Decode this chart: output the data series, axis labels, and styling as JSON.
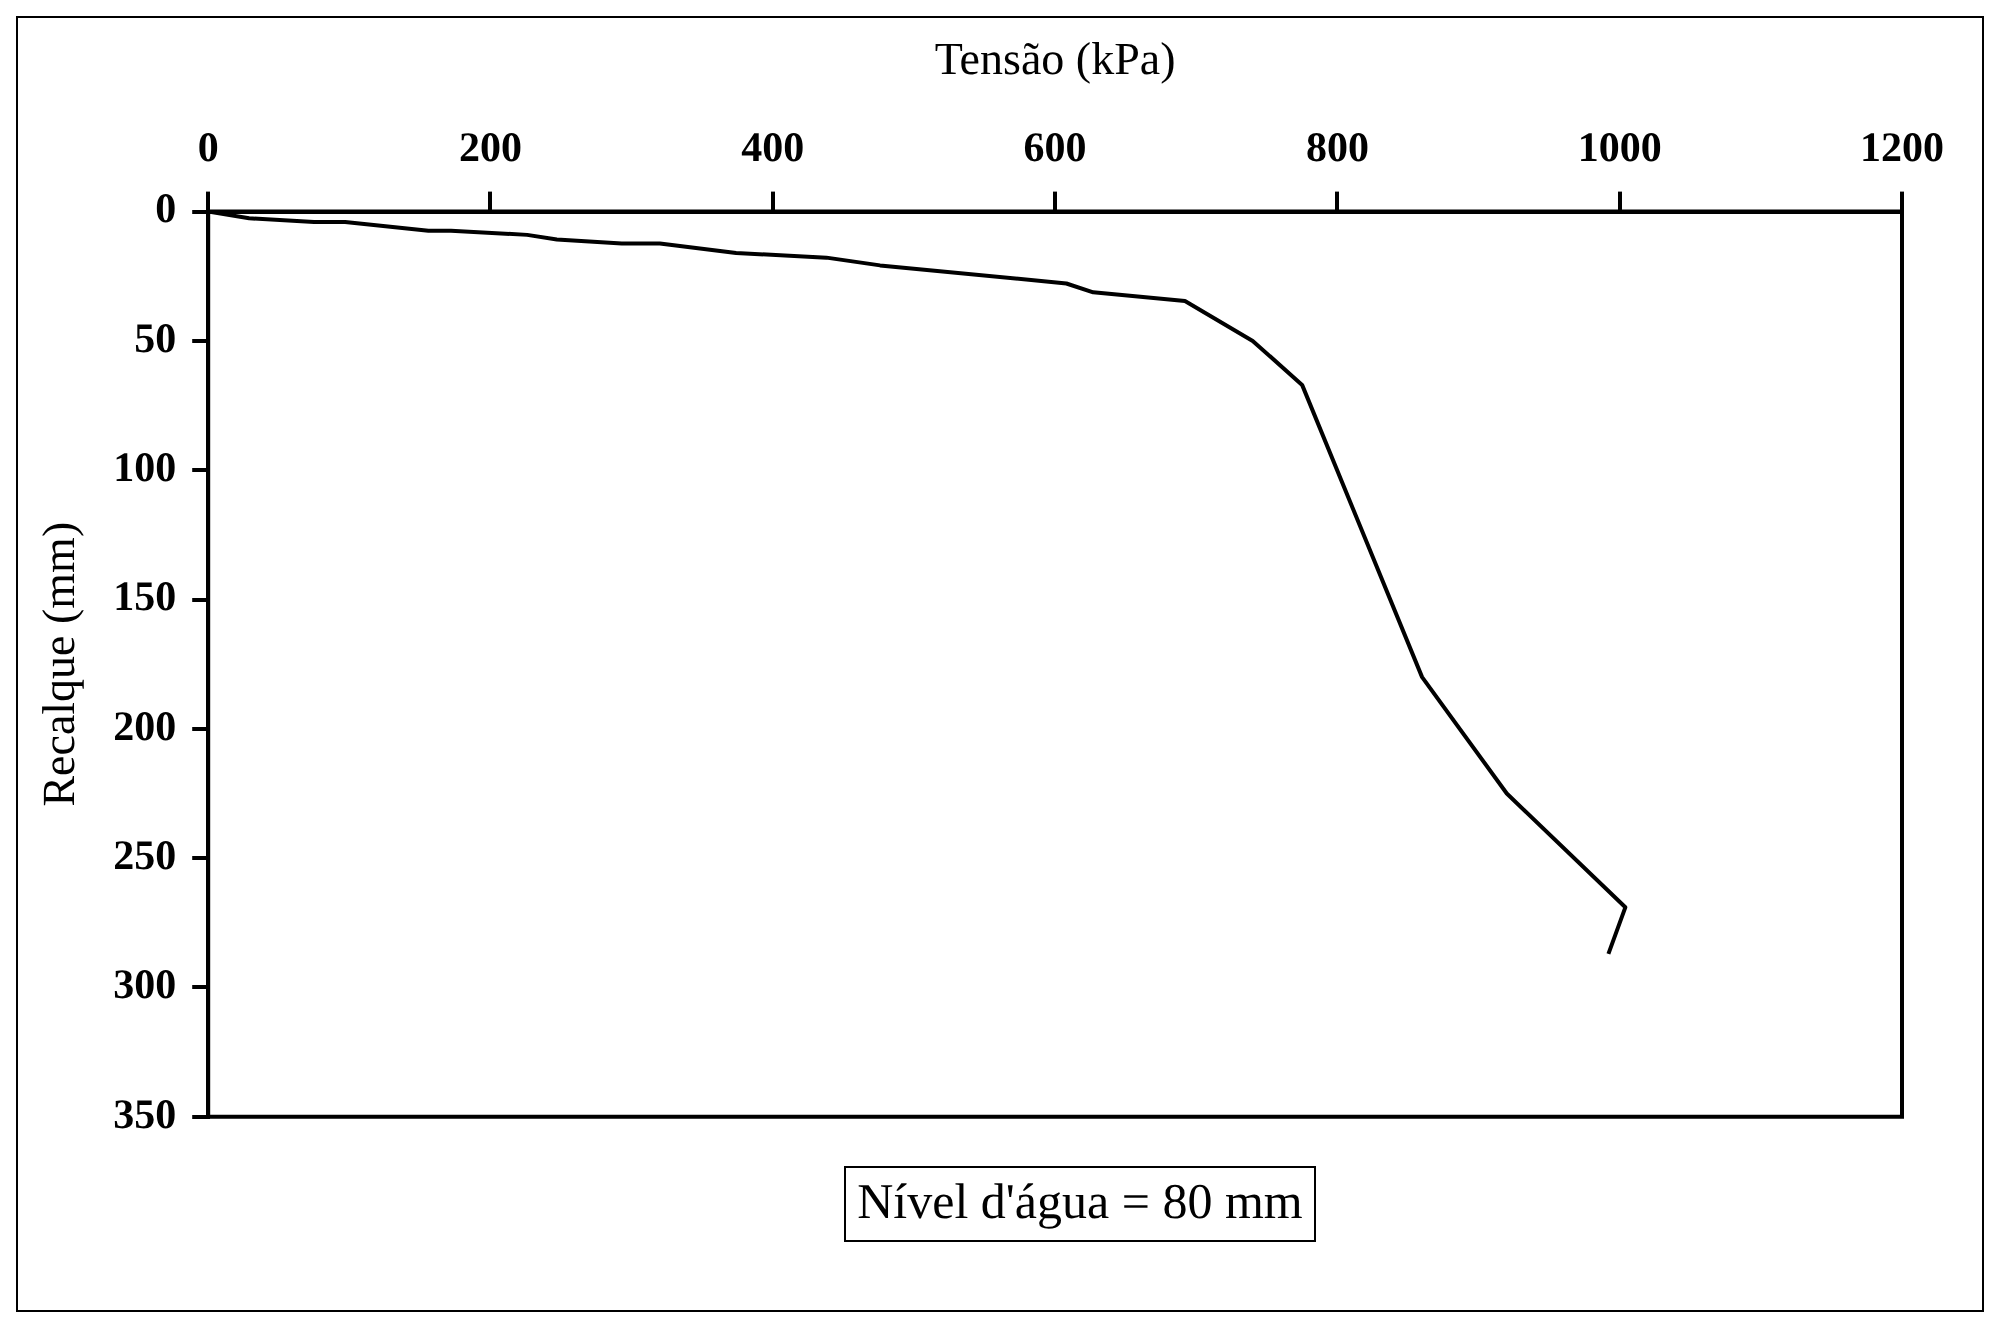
{
  "chart_data": {
    "type": "line",
    "xlabel": "Tensão (kPa)",
    "ylabel": "Recalque (mm)",
    "x": [
      0,
      29,
      75,
      97,
      156,
      172,
      226,
      247,
      293,
      320,
      374,
      438,
      476,
      608,
      627,
      692,
      740,
      775,
      860,
      920,
      1004,
      992
    ],
    "series": [
      {
        "color": "#000000",
        "values": [
          0,
          2.6,
          4,
          4,
          7.4,
          7.4,
          9,
          10.8,
          12.3,
          12.3,
          16,
          17.8,
          20.8,
          27.8,
          31.2,
          34.6,
          50,
          67,
          180,
          225,
          269,
          287
        ]
      }
    ],
    "xlim": [
      0,
      1200
    ],
    "xticks": [
      0,
      200,
      400,
      600,
      800,
      1000,
      1200
    ],
    "ylim": [
      350,
      0
    ],
    "yticks": [
      0,
      50,
      100,
      150,
      200,
      250,
      300,
      350
    ],
    "grid": false,
    "legend": false,
    "marker": "none",
    "line_style": "solid",
    "annotations": [
      "Nível d'água = 80 mm"
    ]
  }
}
